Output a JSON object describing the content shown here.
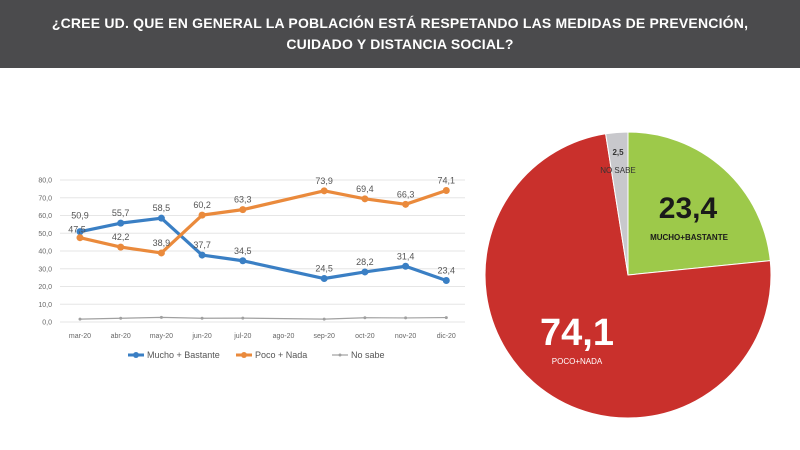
{
  "header": {
    "title": "¿CREE UD. QUE EN GENERAL LA POBLACIÓN ESTÁ RESPETANDO LAS MEDIDAS DE PREVENCIÓN, CUIDADO Y DISTANCIA SOCIAL?"
  },
  "chart_data": [
    {
      "type": "line",
      "categories": [
        "mar-20",
        "abr-20",
        "may-20",
        "jun-20",
        "jul-20",
        "ago-20",
        "sep-20",
        "oct-20",
        "nov-20",
        "dic-20"
      ],
      "ylim": [
        0,
        80
      ],
      "yticks": [
        "0,0",
        "10,0",
        "20,0",
        "30,0",
        "40,0",
        "50,0",
        "60,0",
        "70,0",
        "80,0"
      ],
      "grid": true,
      "legend": "bottom",
      "series": [
        {
          "name": "Mucho + Bastante",
          "color": "#3a7fc4",
          "values": [
            50.9,
            55.7,
            58.5,
            37.7,
            34.5,
            null,
            24.5,
            28.2,
            31.4,
            23.4
          ],
          "labels": [
            "50,9",
            "55,7",
            "58,5",
            "37,7",
            "34,5",
            "",
            "24,5",
            "28,2",
            "31,4",
            "23,4"
          ]
        },
        {
          "name": "Poco + Nada",
          "color": "#ea8a3c",
          "values": [
            47.5,
            42.2,
            38.9,
            60.2,
            63.3,
            null,
            73.9,
            69.4,
            66.3,
            74.1
          ],
          "labels": [
            "47,5",
            "42,2",
            "38,9",
            "60,2",
            "63,3",
            "",
            "73,9",
            "69,4",
            "66,3",
            "74,1"
          ]
        },
        {
          "name": "No sabe",
          "color": "#a0a0a0",
          "values": [
            1.6,
            2.1,
            2.6,
            2.1,
            2.2,
            null,
            1.6,
            2.4,
            2.3,
            2.5
          ]
        }
      ]
    },
    {
      "type": "pie",
      "slices": [
        {
          "label": "MUCHO+BASTANTE",
          "value": 23.4,
          "text": "23,4",
          "color": "#9dc94a"
        },
        {
          "label": "POCO+NADA",
          "value": 74.1,
          "text": "74,1",
          "color": "#c9302c"
        },
        {
          "label": "NO SABE",
          "value": 2.5,
          "text": "2,5",
          "color": "#c8c8cc"
        }
      ]
    }
  ]
}
